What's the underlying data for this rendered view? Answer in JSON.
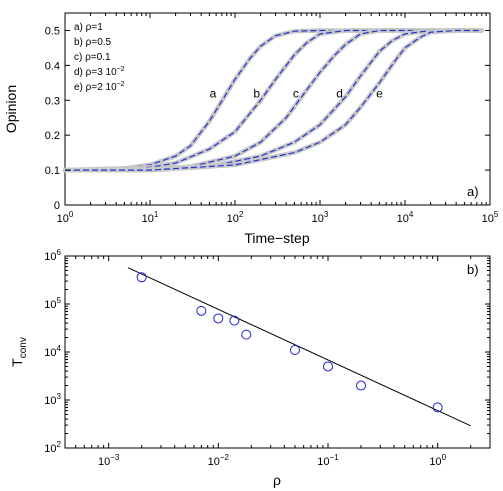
{
  "chart_data": [
    {
      "type": "line",
      "panel_label": "a)",
      "xlabel": "Time−step",
      "ylabel": "Opinion",
      "xscale": "log",
      "xlim": [
        1,
        100000
      ],
      "ylim": [
        0,
        0.55
      ],
      "x_ticks": [
        {
          "value": 1,
          "base": "10",
          "exp": "0"
        },
        {
          "value": 10,
          "base": "10",
          "exp": "1"
        },
        {
          "value": 100,
          "base": "10",
          "exp": "2"
        },
        {
          "value": 1000,
          "base": "10",
          "exp": "3"
        },
        {
          "value": 10000,
          "base": "10",
          "exp": "4"
        },
        {
          "value": 100000,
          "base": "10",
          "exp": "5"
        }
      ],
      "y_ticks": [
        {
          "value": 0,
          "label": "0"
        },
        {
          "value": 0.1,
          "label": "0.1"
        },
        {
          "value": 0.2,
          "label": "0.2"
        },
        {
          "value": 0.3,
          "label": "0.3"
        },
        {
          "value": 0.4,
          "label": "0.4"
        },
        {
          "value": 0.5,
          "label": "0.5"
        }
      ],
      "legend_position": "top-left",
      "legend": [
        {
          "prefix": "a) ρ=1",
          "exp": ""
        },
        {
          "prefix": "b) ρ=0.5",
          "exp": ""
        },
        {
          "prefix": "c) ρ=0.1",
          "exp": ""
        },
        {
          "prefix": "d) ρ=3 10",
          "exp": "−2"
        },
        {
          "prefix": "e) ρ=2 10",
          "exp": "−2"
        }
      ],
      "series": [
        {
          "label": "a",
          "label_x": 55,
          "label_y": 0.32,
          "x": [
            1,
            5,
            10,
            20,
            30,
            50,
            75,
            100,
            150,
            200,
            300,
            500,
            1000,
            10000,
            80000
          ],
          "y": [
            0.1,
            0.105,
            0.115,
            0.14,
            0.17,
            0.24,
            0.31,
            0.36,
            0.42,
            0.455,
            0.485,
            0.498,
            0.5,
            0.5,
            0.5
          ]
        },
        {
          "label": "b",
          "label_x": 180,
          "label_y": 0.32,
          "x": [
            1,
            5,
            10,
            20,
            50,
            100,
            200,
            300,
            500,
            700,
            1000,
            2000,
            10000,
            80000
          ],
          "y": [
            0.1,
            0.102,
            0.108,
            0.12,
            0.16,
            0.21,
            0.3,
            0.36,
            0.43,
            0.465,
            0.49,
            0.5,
            0.5,
            0.5
          ]
        },
        {
          "label": "c",
          "label_x": 520,
          "label_y": 0.32,
          "x": [
            1,
            10,
            30,
            100,
            200,
            400,
            700,
            1000,
            1500,
            2000,
            3000,
            5000,
            10000,
            80000
          ],
          "y": [
            0.1,
            0.102,
            0.11,
            0.14,
            0.18,
            0.25,
            0.33,
            0.38,
            0.43,
            0.46,
            0.49,
            0.5,
            0.5,
            0.5
          ]
        },
        {
          "label": "d",
          "label_x": 1700,
          "label_y": 0.32,
          "x": [
            1,
            10,
            50,
            200,
            500,
            1000,
            2000,
            3000,
            5000,
            7000,
            10000,
            20000,
            80000
          ],
          "y": [
            0.1,
            0.1,
            0.11,
            0.14,
            0.18,
            0.23,
            0.31,
            0.37,
            0.44,
            0.47,
            0.49,
            0.5,
            0.5
          ]
        },
        {
          "label": "e",
          "label_x": 5000,
          "label_y": 0.32,
          "x": [
            1,
            10,
            100,
            500,
            1000,
            2000,
            3000,
            5000,
            8000,
            10000,
            15000,
            20000,
            40000,
            80000
          ],
          "y": [
            0.1,
            0.1,
            0.115,
            0.15,
            0.18,
            0.23,
            0.28,
            0.35,
            0.42,
            0.45,
            0.48,
            0.495,
            0.5,
            0.5
          ]
        }
      ]
    },
    {
      "type": "scatter",
      "panel_label": "b)",
      "xlabel": "ρ",
      "ylabel_base": "T",
      "ylabel_sub": "conv",
      "xscale": "log",
      "yscale": "log",
      "xlim": [
        0.0004,
        3
      ],
      "ylim": [
        100,
        1000000
      ],
      "grid": false,
      "x_ticks": [
        {
          "value": 0.001,
          "base": "10",
          "exp": "−3"
        },
        {
          "value": 0.01,
          "base": "10",
          "exp": "−2"
        },
        {
          "value": 0.1,
          "base": "10",
          "exp": "−1"
        },
        {
          "value": 1,
          "base": "10",
          "exp": "0"
        }
      ],
      "y_ticks": [
        {
          "value": 100,
          "base": "10",
          "exp": "2"
        },
        {
          "value": 1000,
          "base": "10",
          "exp": "3"
        },
        {
          "value": 10000,
          "base": "10",
          "exp": "4"
        },
        {
          "value": 100000,
          "base": "10",
          "exp": "5"
        },
        {
          "value": 1000000,
          "base": "10",
          "exp": "6"
        }
      ],
      "points": [
        {
          "x": 0.002,
          "y": 360000
        },
        {
          "x": 0.007,
          "y": 72000
        },
        {
          "x": 0.01,
          "y": 50000
        },
        {
          "x": 0.014,
          "y": 45000
        },
        {
          "x": 0.018,
          "y": 23000
        },
        {
          "x": 0.05,
          "y": 11000
        },
        {
          "x": 0.1,
          "y": 5000
        },
        {
          "x": 0.2,
          "y": 2000
        },
        {
          "x": 1,
          "y": 700
        }
      ],
      "fit": [
        {
          "x": 0.0015,
          "y": 570000
        },
        {
          "x": 2,
          "y": 290
        }
      ],
      "colors": {
        "points": "#1f1fd0",
        "fit": "#000000"
      }
    }
  ],
  "colors": {
    "thick_curve": "#c8c8c8",
    "dashed_curve": "#2233cc"
  }
}
